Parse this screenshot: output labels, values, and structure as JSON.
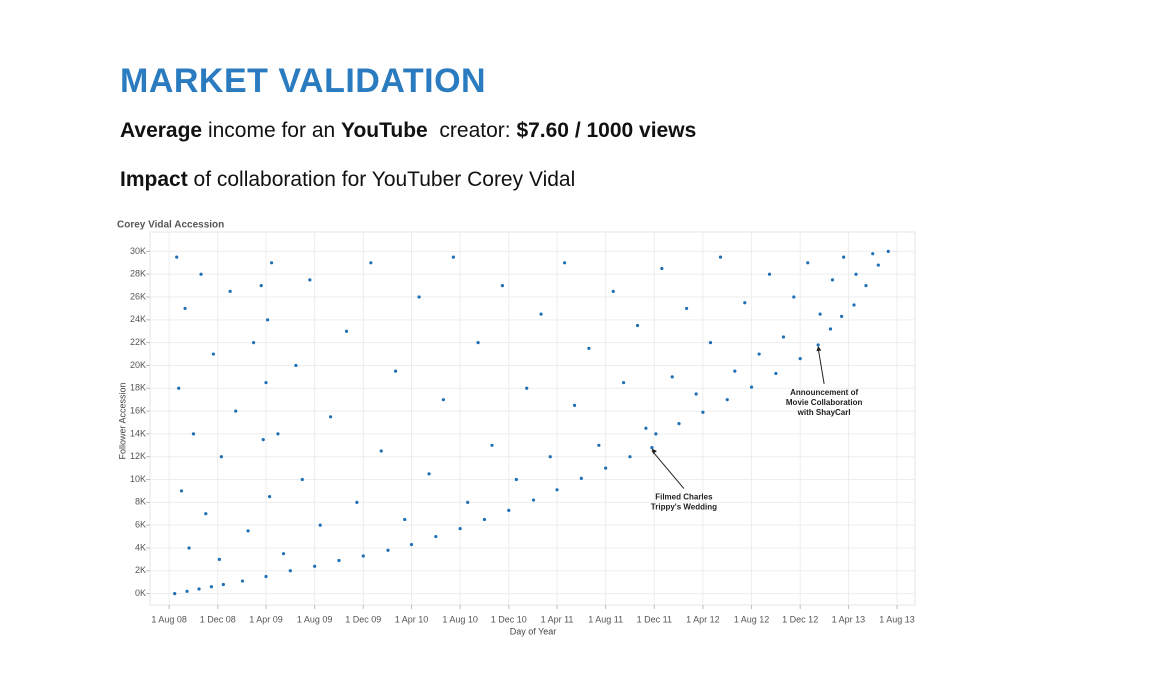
{
  "header": {
    "title": "MARKET VALIDATION",
    "lines": [
      [
        {
          "text": "Average",
          "bold": true
        },
        {
          "text": " income for an ",
          "bold": false
        },
        {
          "text": "YouTube",
          "bold": true
        },
        {
          "text": "  creator: ",
          "bold": false
        },
        {
          "text": "$7.60 / 1000 views",
          "bold": true
        }
      ],
      [
        {
          "text": "Impact",
          "bold": true
        },
        {
          "text": " of collaboration for YouTuber Corey Vidal",
          "bold": false
        }
      ]
    ]
  },
  "chart_data": {
    "type": "scatter",
    "title": "Corey Vidal Accession",
    "x_label": "Day of Year",
    "y_label": "Follower Accession",
    "color": "#1f6fb5",
    "grid": true,
    "xlim": [
      "2008-06-14",
      "2013-09-15"
    ],
    "xticks": [
      {
        "value": "2008-08-01",
        "label": "1 Aug 08"
      },
      {
        "value": "2008-12-01",
        "label": "1 Dec 08"
      },
      {
        "value": "2009-04-01",
        "label": "1 Apr 09"
      },
      {
        "value": "2009-08-01",
        "label": "1 Aug 09"
      },
      {
        "value": "2009-12-01",
        "label": "1 Dec 09"
      },
      {
        "value": "2010-04-01",
        "label": "1 Apr 10"
      },
      {
        "value": "2010-08-01",
        "label": "1 Aug 10"
      },
      {
        "value": "2010-12-01",
        "label": "1 Dec 10"
      },
      {
        "value": "2011-04-01",
        "label": "1 Apr 11"
      },
      {
        "value": "2011-08-01",
        "label": "1 Aug 11"
      },
      {
        "value": "2011-12-01",
        "label": "1 Dec 11"
      },
      {
        "value": "2012-04-01",
        "label": "1 Apr 12"
      },
      {
        "value": "2012-08-01",
        "label": "1 Aug 12"
      },
      {
        "value": "2012-12-01",
        "label": "1 Dec 12"
      },
      {
        "value": "2013-04-01",
        "label": "1 Apr 13"
      },
      {
        "value": "2013-08-01",
        "label": "1 Aug 13"
      }
    ],
    "ylim": [
      -1000,
      31700
    ],
    "yticks": [
      {
        "value": 0,
        "label": "0K"
      },
      {
        "value": 2000,
        "label": "2K"
      },
      {
        "value": 4000,
        "label": "4K"
      },
      {
        "value": 6000,
        "label": "6K"
      },
      {
        "value": 8000,
        "label": "8K"
      },
      {
        "value": 10000,
        "label": "10K"
      },
      {
        "value": 12000,
        "label": "12K"
      },
      {
        "value": 14000,
        "label": "14K"
      },
      {
        "value": 16000,
        "label": "16K"
      },
      {
        "value": 18000,
        "label": "18K"
      },
      {
        "value": 20000,
        "label": "20K"
      },
      {
        "value": 22000,
        "label": "22K"
      },
      {
        "value": 24000,
        "label": "24K"
      },
      {
        "value": 26000,
        "label": "26K"
      },
      {
        "value": 28000,
        "label": "28K"
      },
      {
        "value": 30000,
        "label": "30K"
      }
    ],
    "x": [
      "2008-08-15",
      "2008-09-15",
      "2008-10-15",
      "2008-11-15",
      "2008-12-15",
      "2009-02-01",
      "2009-04-01",
      "2009-06-01",
      "2009-08-01",
      "2009-10-01",
      "2009-12-01",
      "2010-02-01",
      "2010-04-01",
      "2010-06-01",
      "2010-08-01",
      "2010-10-01",
      "2010-12-01",
      "2011-02-01",
      "2011-04-01",
      "2011-06-01",
      "2011-08-01",
      "2011-10-01",
      "2011-11-25",
      "2011-12-05",
      "2012-02-01",
      "2012-04-01",
      "2012-06-01",
      "2012-08-01",
      "2012-10-01",
      "2012-12-01",
      "2013-01-15",
      "2013-02-15",
      "2013-03-15",
      "2013-04-15",
      "2013-05-15",
      "2013-06-15",
      "2013-07-10",
      "2008-08-20",
      "2008-08-25",
      "2008-09-01",
      "2008-09-10",
      "2008-09-20",
      "2008-10-01",
      "2008-10-20",
      "2008-11-01",
      "2008-11-20",
      "2008-12-05",
      "2008-12-10",
      "2009-01-01",
      "2009-01-15",
      "2009-02-15",
      "2009-03-01",
      "2009-03-20",
      "2009-03-25",
      "2009-04-01",
      "2009-04-05",
      "2009-04-10",
      "2009-04-15",
      "2009-05-01",
      "2009-05-15",
      "2009-06-15",
      "2009-07-01",
      "2009-07-20",
      "2009-08-15",
      "2009-09-10",
      "2009-10-20",
      "2009-11-15",
      "2009-12-20",
      "2010-01-15",
      "2010-02-20",
      "2010-03-15",
      "2010-04-20",
      "2010-05-15",
      "2010-06-20",
      "2010-07-15",
      "2010-08-20",
      "2010-09-15",
      "2010-10-20",
      "2010-11-15",
      "2010-12-20",
      "2011-01-15",
      "2011-02-20",
      "2011-03-15",
      "2011-04-20",
      "2011-05-15",
      "2011-06-20",
      "2011-07-15",
      "2011-08-20",
      "2011-09-15",
      "2011-10-20",
      "2011-11-10",
      "2011-12-20",
      "2012-01-15",
      "2012-02-20",
      "2012-03-15",
      "2012-04-20",
      "2012-05-15",
      "2012-06-20",
      "2012-07-15",
      "2012-08-20",
      "2012-09-15",
      "2012-10-20",
      "2012-11-15",
      "2012-12-20",
      "2013-01-20",
      "2013-02-20",
      "2013-03-20",
      "2013-04-20",
      "2013-06-01"
    ],
    "values": [
      0,
      200,
      400,
      600,
      800,
      1100,
      1500,
      2000,
      2400,
      2900,
      3300,
      3800,
      4300,
      5000,
      5700,
      6500,
      7300,
      8200,
      9100,
      10100,
      11000,
      12000,
      12800,
      14000,
      14900,
      15900,
      17000,
      18100,
      19300,
      20600,
      21800,
      23200,
      24300,
      25300,
      27000,
      28800,
      30000,
      29500,
      18000,
      9000,
      25000,
      4000,
      14000,
      28000,
      7000,
      21000,
      3000,
      12000,
      26500,
      16000,
      5500,
      22000,
      27000,
      13500,
      18500,
      24000,
      8500,
      29000,
      14000,
      3500,
      20000,
      10000,
      27500,
      6000,
      15500,
      23000,
      8000,
      29000,
      12500,
      19500,
      6500,
      26000,
      10500,
      17000,
      29500,
      8000,
      22000,
      13000,
      27000,
      10000,
      18000,
      24500,
      12000,
      29000,
      16500,
      21500,
      13000,
      26500,
      18500,
      23500,
      14500,
      28500,
      19000,
      25000,
      17500,
      22000,
      29500,
      19500,
      25500,
      21000,
      28000,
      22500,
      26000,
      29000,
      24500,
      27500,
      29500,
      28000,
      29800
    ],
    "annotations": [
      {
        "lines": [
          "Announcement of",
          "Movie Collaboration",
          "with ShayCarl"
        ],
        "x": "2013-01-15",
        "y": 21800
      },
      {
        "lines": [
          "Filmed Charles",
          "Trippy's Wedding"
        ],
        "x": "2011-11-25",
        "y": 12800
      }
    ]
  }
}
